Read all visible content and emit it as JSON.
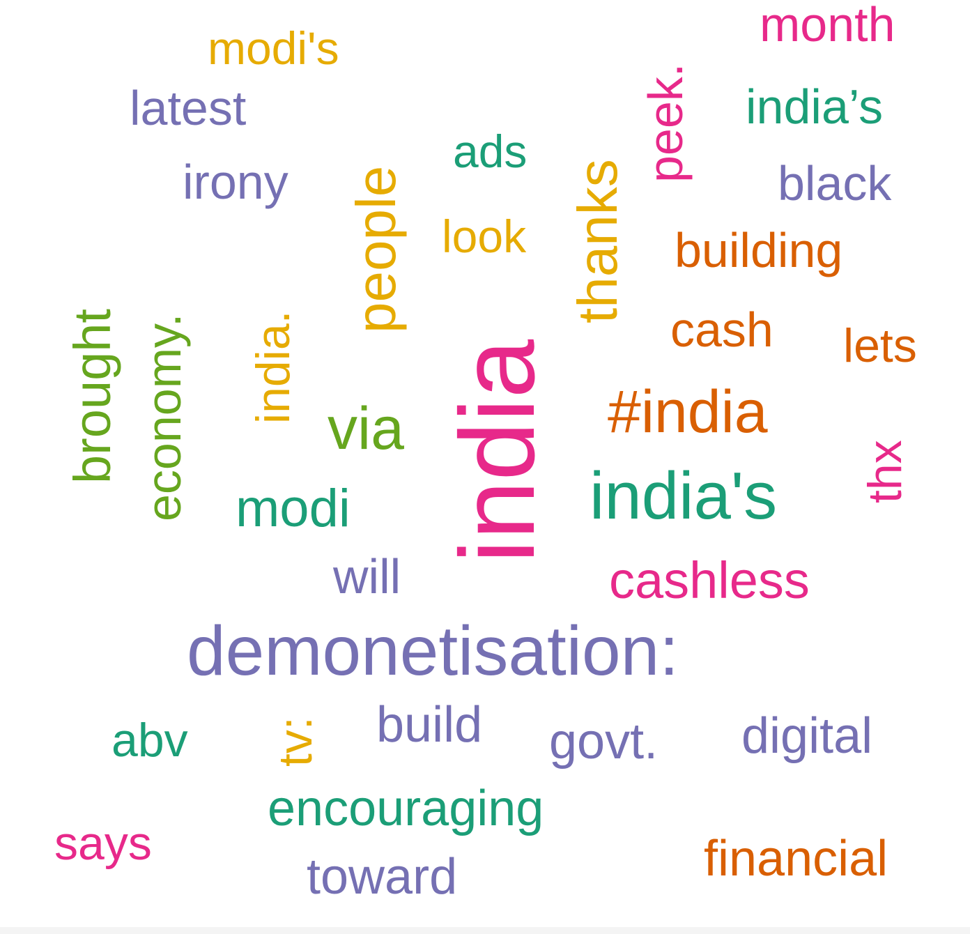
{
  "colors": {
    "teal": "#1b9e77",
    "orange": "#d95f02",
    "purple": "#7570b3",
    "pink": "#e7298a",
    "green": "#66a61e",
    "gold": "#e6ab02"
  },
  "words": {
    "month": {
      "text": "month",
      "color": "#e7298a"
    },
    "modis": {
      "text": "modi's",
      "color": "#e6ab02"
    },
    "latest": {
      "text": "latest",
      "color": "#7570b3"
    },
    "peek": {
      "text": "peek.",
      "color": "#e7298a"
    },
    "indias_curly": {
      "text": "india’s",
      "color": "#1b9e77"
    },
    "ads": {
      "text": "ads",
      "color": "#1b9e77"
    },
    "irony": {
      "text": "irony",
      "color": "#7570b3"
    },
    "people": {
      "text": "people",
      "color": "#e6ab02"
    },
    "thanks": {
      "text": "thanks",
      "color": "#e6ab02"
    },
    "black": {
      "text": "black",
      "color": "#7570b3"
    },
    "look": {
      "text": "look",
      "color": "#e6ab02"
    },
    "building": {
      "text": "building",
      "color": "#d95f02"
    },
    "brought": {
      "text": "brought",
      "color": "#66a61e"
    },
    "economy": {
      "text": "economy.",
      "color": "#66a61e"
    },
    "india_dot": {
      "text": "india.",
      "color": "#e6ab02"
    },
    "cash": {
      "text": "cash",
      "color": "#d95f02"
    },
    "lets": {
      "text": "lets",
      "color": "#d95f02"
    },
    "india": {
      "text": "india",
      "color": "#e7298a"
    },
    "hashindia": {
      "text": "#india",
      "color": "#d95f02"
    },
    "via": {
      "text": "via",
      "color": "#66a61e"
    },
    "thx": {
      "text": "thx",
      "color": "#e7298a"
    },
    "indias": {
      "text": "india's",
      "color": "#1b9e77"
    },
    "modi": {
      "text": "modi",
      "color": "#1b9e77"
    },
    "will": {
      "text": "will",
      "color": "#7570b3"
    },
    "cashless": {
      "text": "cashless",
      "color": "#e7298a"
    },
    "demonetisation": {
      "text": "demonetisation:",
      "color": "#7570b3"
    },
    "abv": {
      "text": "abv",
      "color": "#1b9e77"
    },
    "tv": {
      "text": "tv:",
      "color": "#e6ab02"
    },
    "build": {
      "text": "build",
      "color": "#7570b3"
    },
    "govt": {
      "text": "govt.",
      "color": "#7570b3"
    },
    "digital": {
      "text": "digital",
      "color": "#7570b3"
    },
    "encouraging": {
      "text": "encouraging",
      "color": "#1b9e77"
    },
    "says": {
      "text": "says",
      "color": "#e7298a"
    },
    "financial": {
      "text": "financial",
      "color": "#d95f02"
    },
    "toward": {
      "text": "toward",
      "color": "#7570b3"
    }
  }
}
